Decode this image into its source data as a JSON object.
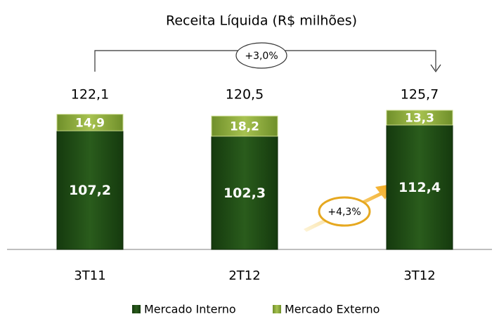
{
  "chart_data": {
    "type": "stacked_bar",
    "title": "Receita Líquida (R$ milhões)",
    "categories": [
      "3T11",
      "2T12",
      "3T12"
    ],
    "series": [
      {
        "name": "Mercado Interno",
        "color": "#1f4a15",
        "values": [
          107.2,
          102.3,
          112.4
        ],
        "value_labels": [
          "107,2",
          "102,3",
          "112,4"
        ]
      },
      {
        "name": "Mercado Externo",
        "color": "#8fae3e",
        "values": [
          14.9,
          18.2,
          13.3
        ],
        "value_labels": [
          "14,9",
          "18,2",
          "13,3"
        ]
      }
    ],
    "totals": [
      122.1,
      120.5,
      125.7
    ],
    "total_labels": [
      "122,1",
      "120,5",
      "125,7"
    ],
    "annotations": [
      "+3,0%",
      "+4,3%"
    ],
    "legend": "bottom"
  }
}
